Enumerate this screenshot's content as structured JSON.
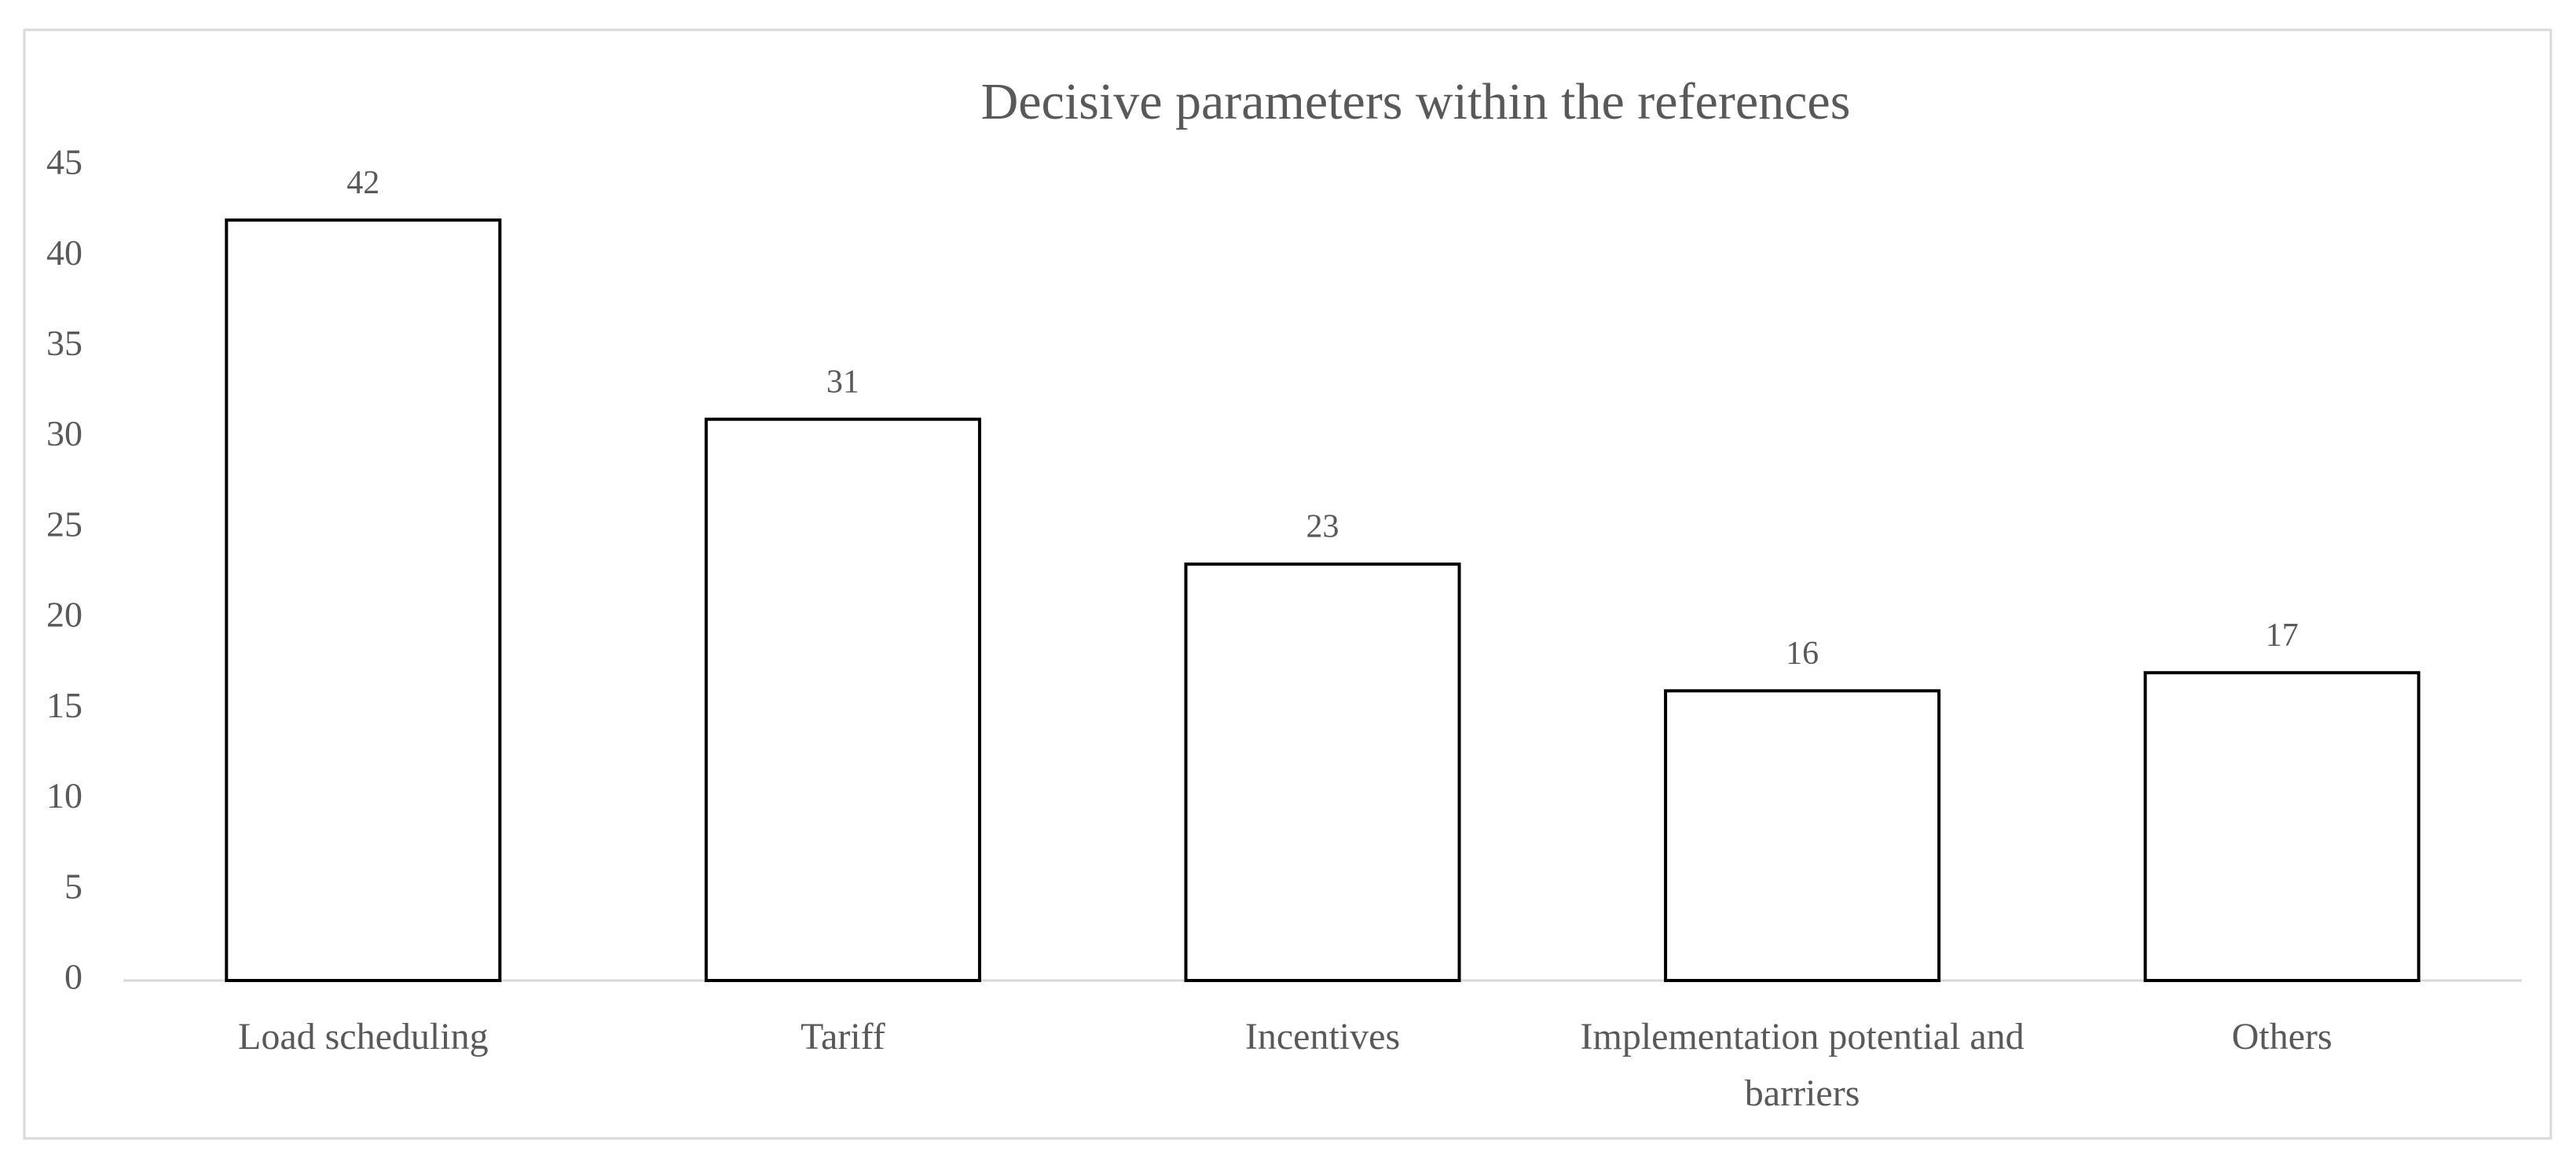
{
  "chart_data": {
    "type": "bar",
    "title": "Decisive parameters within the references",
    "categories": [
      "Load scheduling",
      "Tariff",
      "Incentives",
      "Implementation potential and barriers",
      "Others"
    ],
    "values": [
      42,
      31,
      23,
      16,
      17
    ],
    "color": "#ffffff",
    "edge_color": "#000000",
    "ylim": [
      0,
      45
    ],
    "yticks": [
      0,
      5,
      10,
      15,
      20,
      25,
      30,
      35,
      40,
      45
    ],
    "grid": false
  }
}
